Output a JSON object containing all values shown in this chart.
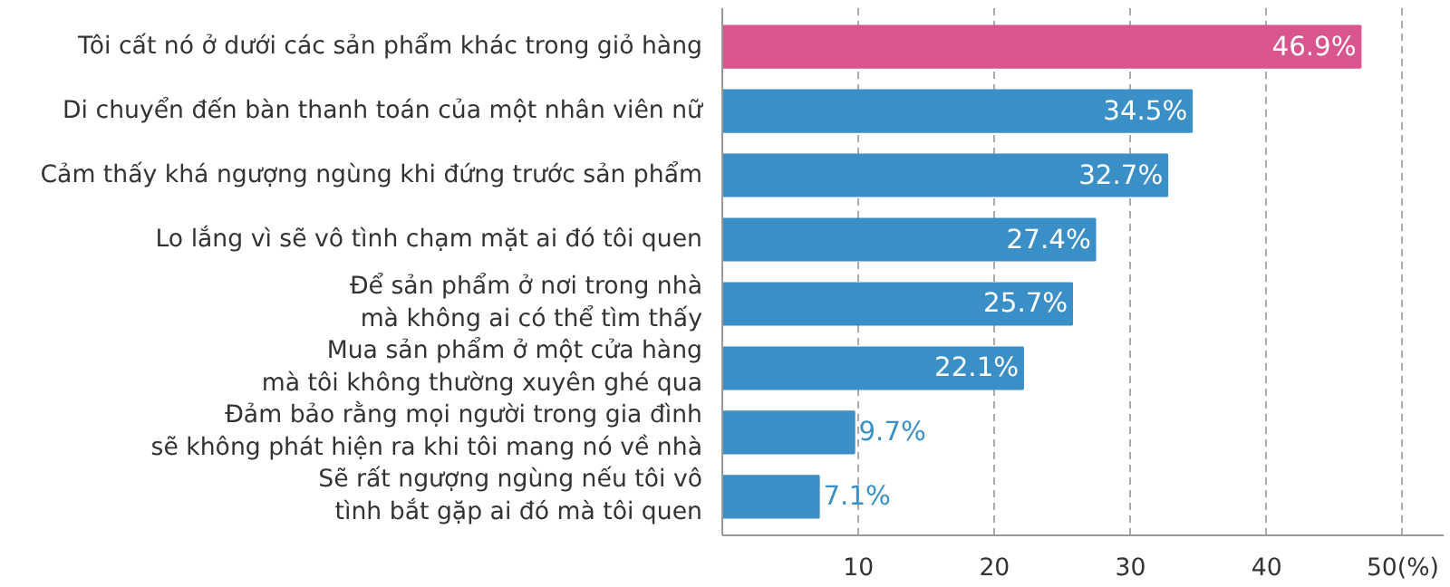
{
  "chart_data": {
    "type": "bar",
    "orientation": "horizontal",
    "categories": [
      "Tôi cất nó ở dưới các sản phẩm khác trong giỏ hàng",
      "Di chuyển đến bàn thanh toán của một nhân viên nữ",
      "Cảm thấy khá ngượng ngùng khi đứng trước sản phẩm",
      "Lo lắng vì sẽ vô tình chạm mặt ai đó tôi quen",
      "Để sản phẩm ở nơi trong nhà\nmà không ai có thể tìm thấy",
      "Mua sản phẩm ở một cửa hàng\nmà tôi không thường xuyên ghé qua",
      "Đảm bảo rằng mọi người trong gia đình\nsẽ không phát hiện ra khi tôi mang nó về nhà",
      "Sẽ rất ngượng ngùng nếu tôi vô\ntình bắt gặp ai đó mà tôi quen"
    ],
    "values": [
      46.9,
      34.5,
      32.7,
      27.4,
      25.7,
      22.1,
      9.7,
      7.1
    ],
    "colors": [
      "#d9558f",
      "#3a8fc6",
      "#3a8fc6",
      "#3a8fc6",
      "#3a8fc6",
      "#3a8fc6",
      "#3a8fc6",
      "#3a8fc6"
    ],
    "value_labels": [
      "46.9%",
      "34.5%",
      "32.7%",
      "27.4%",
      "25.7%",
      "22.1%",
      "9.7%",
      "7.1%"
    ],
    "xlim": [
      0,
      53
    ],
    "xticks": [
      10,
      20,
      30,
      40,
      {
        "value": 50,
        "label": "50(%)"
      }
    ],
    "grid": "x"
  }
}
